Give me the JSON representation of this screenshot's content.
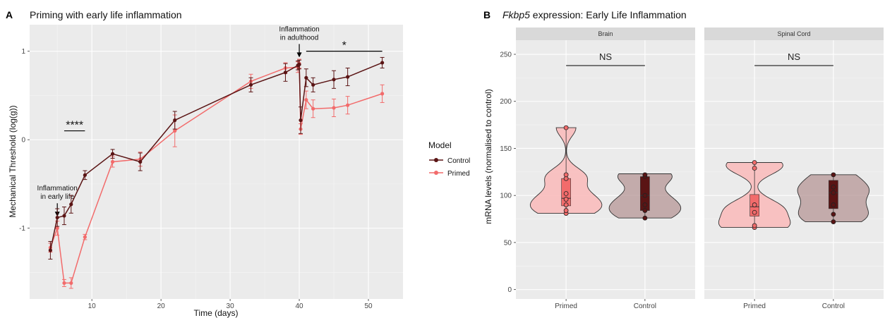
{
  "chart_data": [
    {
      "panel": "A",
      "type": "line",
      "title": "Priming with early life inflammation",
      "xlabel": "Time (days)",
      "ylabel": "Mechanical Threshold (log(g))",
      "xlim": [
        1,
        55
      ],
      "ylim": [
        -1.8,
        1.3
      ],
      "xticks": [
        "10",
        "20",
        "30",
        "40",
        "50"
      ],
      "yticks": [
        "-1",
        "0",
        "1"
      ],
      "grid": true,
      "legend": {
        "title": "Model",
        "placement": "right"
      },
      "series": [
        {
          "name": "Control",
          "color": "#5a1414",
          "x": [
            4,
            5,
            6,
            7,
            9,
            13,
            17,
            22,
            33,
            38,
            39.8,
            40,
            40.2,
            41,
            42,
            45,
            47,
            52
          ],
          "y": [
            -1.25,
            -0.88,
            -0.86,
            -0.73,
            -0.4,
            -0.16,
            -0.25,
            0.22,
            0.62,
            0.76,
            0.84,
            0.85,
            0.22,
            0.7,
            0.62,
            0.68,
            0.71,
            0.87
          ],
          "err": [
            0.1,
            0.1,
            0.1,
            0.1,
            0.05,
            0.05,
            0.1,
            0.1,
            0.08,
            0.1,
            0.05,
            0.05,
            0.15,
            0.1,
            0.08,
            0.1,
            0.1,
            0.06
          ]
        },
        {
          "name": "Primed",
          "color": "#f26b6b",
          "x": [
            4,
            5,
            6,
            7,
            9,
            13,
            17,
            22,
            33,
            38,
            39.8,
            40,
            40.2,
            41,
            42,
            45,
            47,
            52
          ],
          "y": [
            -1.22,
            -1.0,
            -1.62,
            -1.62,
            -1.1,
            -0.25,
            -0.22,
            0.1,
            0.66,
            0.81,
            0.82,
            0.86,
            0.12,
            0.45,
            0.35,
            0.36,
            0.39,
            0.52
          ],
          "err": [
            0.05,
            0.08,
            0.04,
            0.06,
            0.03,
            0.06,
            0.08,
            0.18,
            0.08,
            0.06,
            0.06,
            0.05,
            0.06,
            0.1,
            0.1,
            0.1,
            0.1,
            0.1
          ]
        }
      ],
      "annotations": [
        {
          "text": "Inflammation",
          "line2": "in early life",
          "x": 5,
          "y": -0.75
        },
        {
          "text": "Inflammation",
          "line2": "in adulthood",
          "x": 40,
          "y": 1.05
        },
        {
          "text": "****",
          "x_from": 6,
          "x_to": 9,
          "y": 0.1
        },
        {
          "text": "*",
          "x_from": 41,
          "x_to": 52,
          "y": 1.0
        }
      ]
    },
    {
      "panel": "B",
      "type": "violin",
      "title_italic": "Fkbp5",
      "title_rest": " expression: Early Life Inflammation",
      "ylabel": "mRNA levels (normalised to control)",
      "ylim": [
        -10,
        265
      ],
      "yticks": [
        0,
        50,
        100,
        150,
        200,
        250
      ],
      "categories": [
        "Primed",
        "Control"
      ],
      "colors": {
        "Primed": "#f26b6b",
        "Control": "#5a1414"
      },
      "facets": [
        {
          "name": "Brain",
          "significance": "NS",
          "groups": [
            {
              "category": "Primed",
              "min": 81,
              "q1": 89,
              "median": 97,
              "q3": 118,
              "max": 172,
              "points": [
                81,
                84,
                90,
                96,
                102,
                118,
                122,
                172
              ]
            },
            {
              "category": "Control",
              "min": 76,
              "q1": 84,
              "median": 100,
              "q3": 120,
              "max": 123,
              "points": [
                76,
                84,
                90,
                100,
                120,
                122
              ]
            }
          ]
        },
        {
          "name": "Spinal Cord",
          "significance": "NS",
          "groups": [
            {
              "category": "Primed",
              "min": 66,
              "q1": 78,
              "median": 88,
              "q3": 101,
              "max": 135,
              "points": [
                66,
                68,
                82,
                90,
                129,
                135
              ]
            },
            {
              "category": "Control",
              "min": 72,
              "q1": 86,
              "median": 103,
              "q3": 116,
              "max": 122,
              "points": [
                72,
                80,
                90,
                103,
                109,
                122
              ]
            }
          ]
        }
      ]
    }
  ]
}
